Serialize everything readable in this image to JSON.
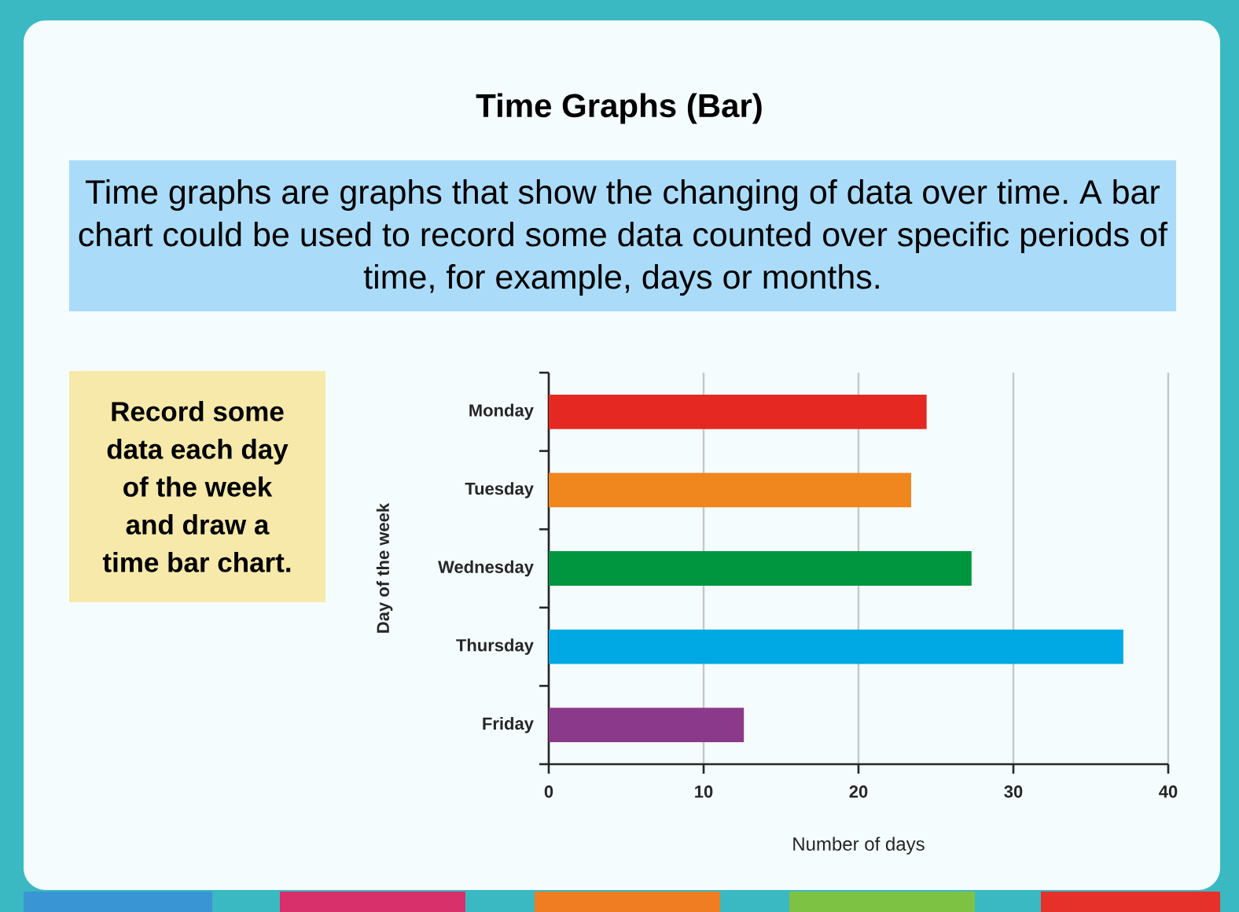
{
  "chart_data": {
    "type": "bar",
    "orientation": "horizontal",
    "title": "Time Graphs (Bar)",
    "subtitle": "Time graphs are graphs that show the changing of data over time. A bar chart could be used to record some data counted over specific periods of time, for example, days or months.",
    "annotations": [
      "Record some data each day of the week and draw a time bar chart."
    ],
    "categories": [
      "Monday",
      "Tuesday",
      "Wednesday",
      "Thursday",
      "Friday"
    ],
    "values": [
      24.4,
      23.4,
      27.3,
      37.1,
      12.6
    ],
    "colors": [
      "#e52822",
      "#ef861e",
      "#00953f",
      "#00a8e4",
      "#8b3a8b"
    ],
    "xlabel": "Number of days",
    "ylabel": "Day of the week",
    "xlim": [
      0,
      40
    ],
    "xticks": [
      0,
      10,
      20,
      30,
      40
    ],
    "grid": "x"
  }
}
